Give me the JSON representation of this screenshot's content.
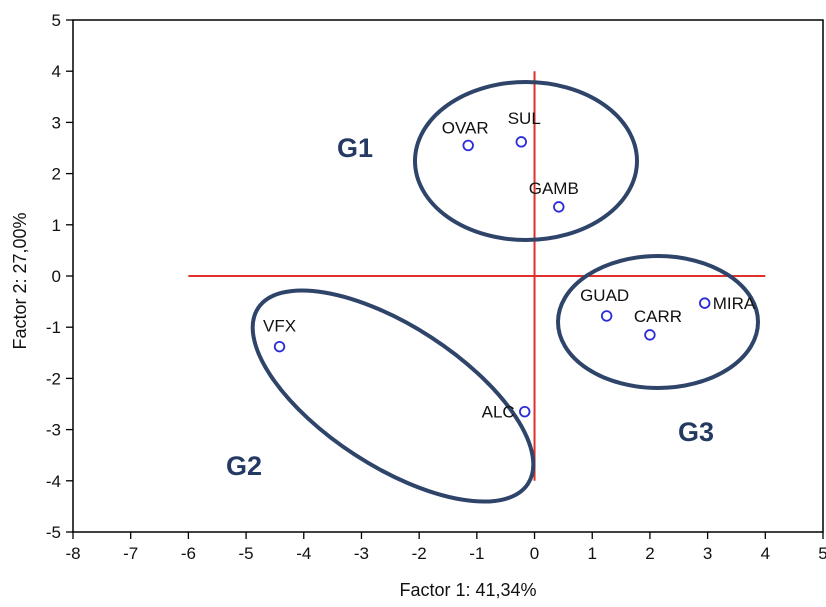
{
  "chart_data": {
    "type": "scatter",
    "xlabel": "Factor 1: 41,34%",
    "ylabel": "Factor 2: 27,00%",
    "xlim": [
      -8,
      5
    ],
    "ylim": [
      -5,
      5
    ],
    "x_ticks": [
      -8,
      -7,
      -6,
      -5,
      -4,
      -3,
      -2,
      -1,
      0,
      1,
      2,
      3,
      4,
      5
    ],
    "y_ticks": [
      -5,
      -4,
      -3,
      -2,
      -1,
      0,
      1,
      2,
      3,
      4,
      5
    ],
    "grid": false,
    "points": [
      {
        "label": "OVAR",
        "x": -1.15,
        "y": 2.55
      },
      {
        "label": "SUL",
        "x": -0.23,
        "y": 2.62
      },
      {
        "label": "GAMB",
        "x": 0.42,
        "y": 1.35
      },
      {
        "label": "VFX",
        "x": -4.42,
        "y": -1.38
      },
      {
        "label": "ALC",
        "x": -0.17,
        "y": -2.65
      },
      {
        "label": "GUAD",
        "x": 1.25,
        "y": -0.78
      },
      {
        "label": "CARR",
        "x": 2.0,
        "y": -1.15
      },
      {
        "label": "MIRA",
        "x": 2.95,
        "y": -0.53
      }
    ],
    "reference_lines": {
      "horizontal": {
        "y": 0,
        "x_from": -6,
        "x_to": 4
      },
      "vertical": {
        "x": 0,
        "y_from": -4,
        "y_to": 4
      },
      "color": "#e0302c"
    },
    "groups": [
      {
        "label": "G1",
        "members": [
          "OVAR",
          "SUL",
          "GAMB"
        ]
      },
      {
        "label": "G2",
        "members": [
          "VFX",
          "ALC"
        ]
      },
      {
        "label": "G3",
        "members": [
          "GUAD",
          "CARR",
          "MIRA"
        ]
      }
    ],
    "colors": {
      "point": "#2b2bd8",
      "ellipse": "#2e4469",
      "group_label": "#253a63",
      "reference": "#e0302c"
    }
  }
}
